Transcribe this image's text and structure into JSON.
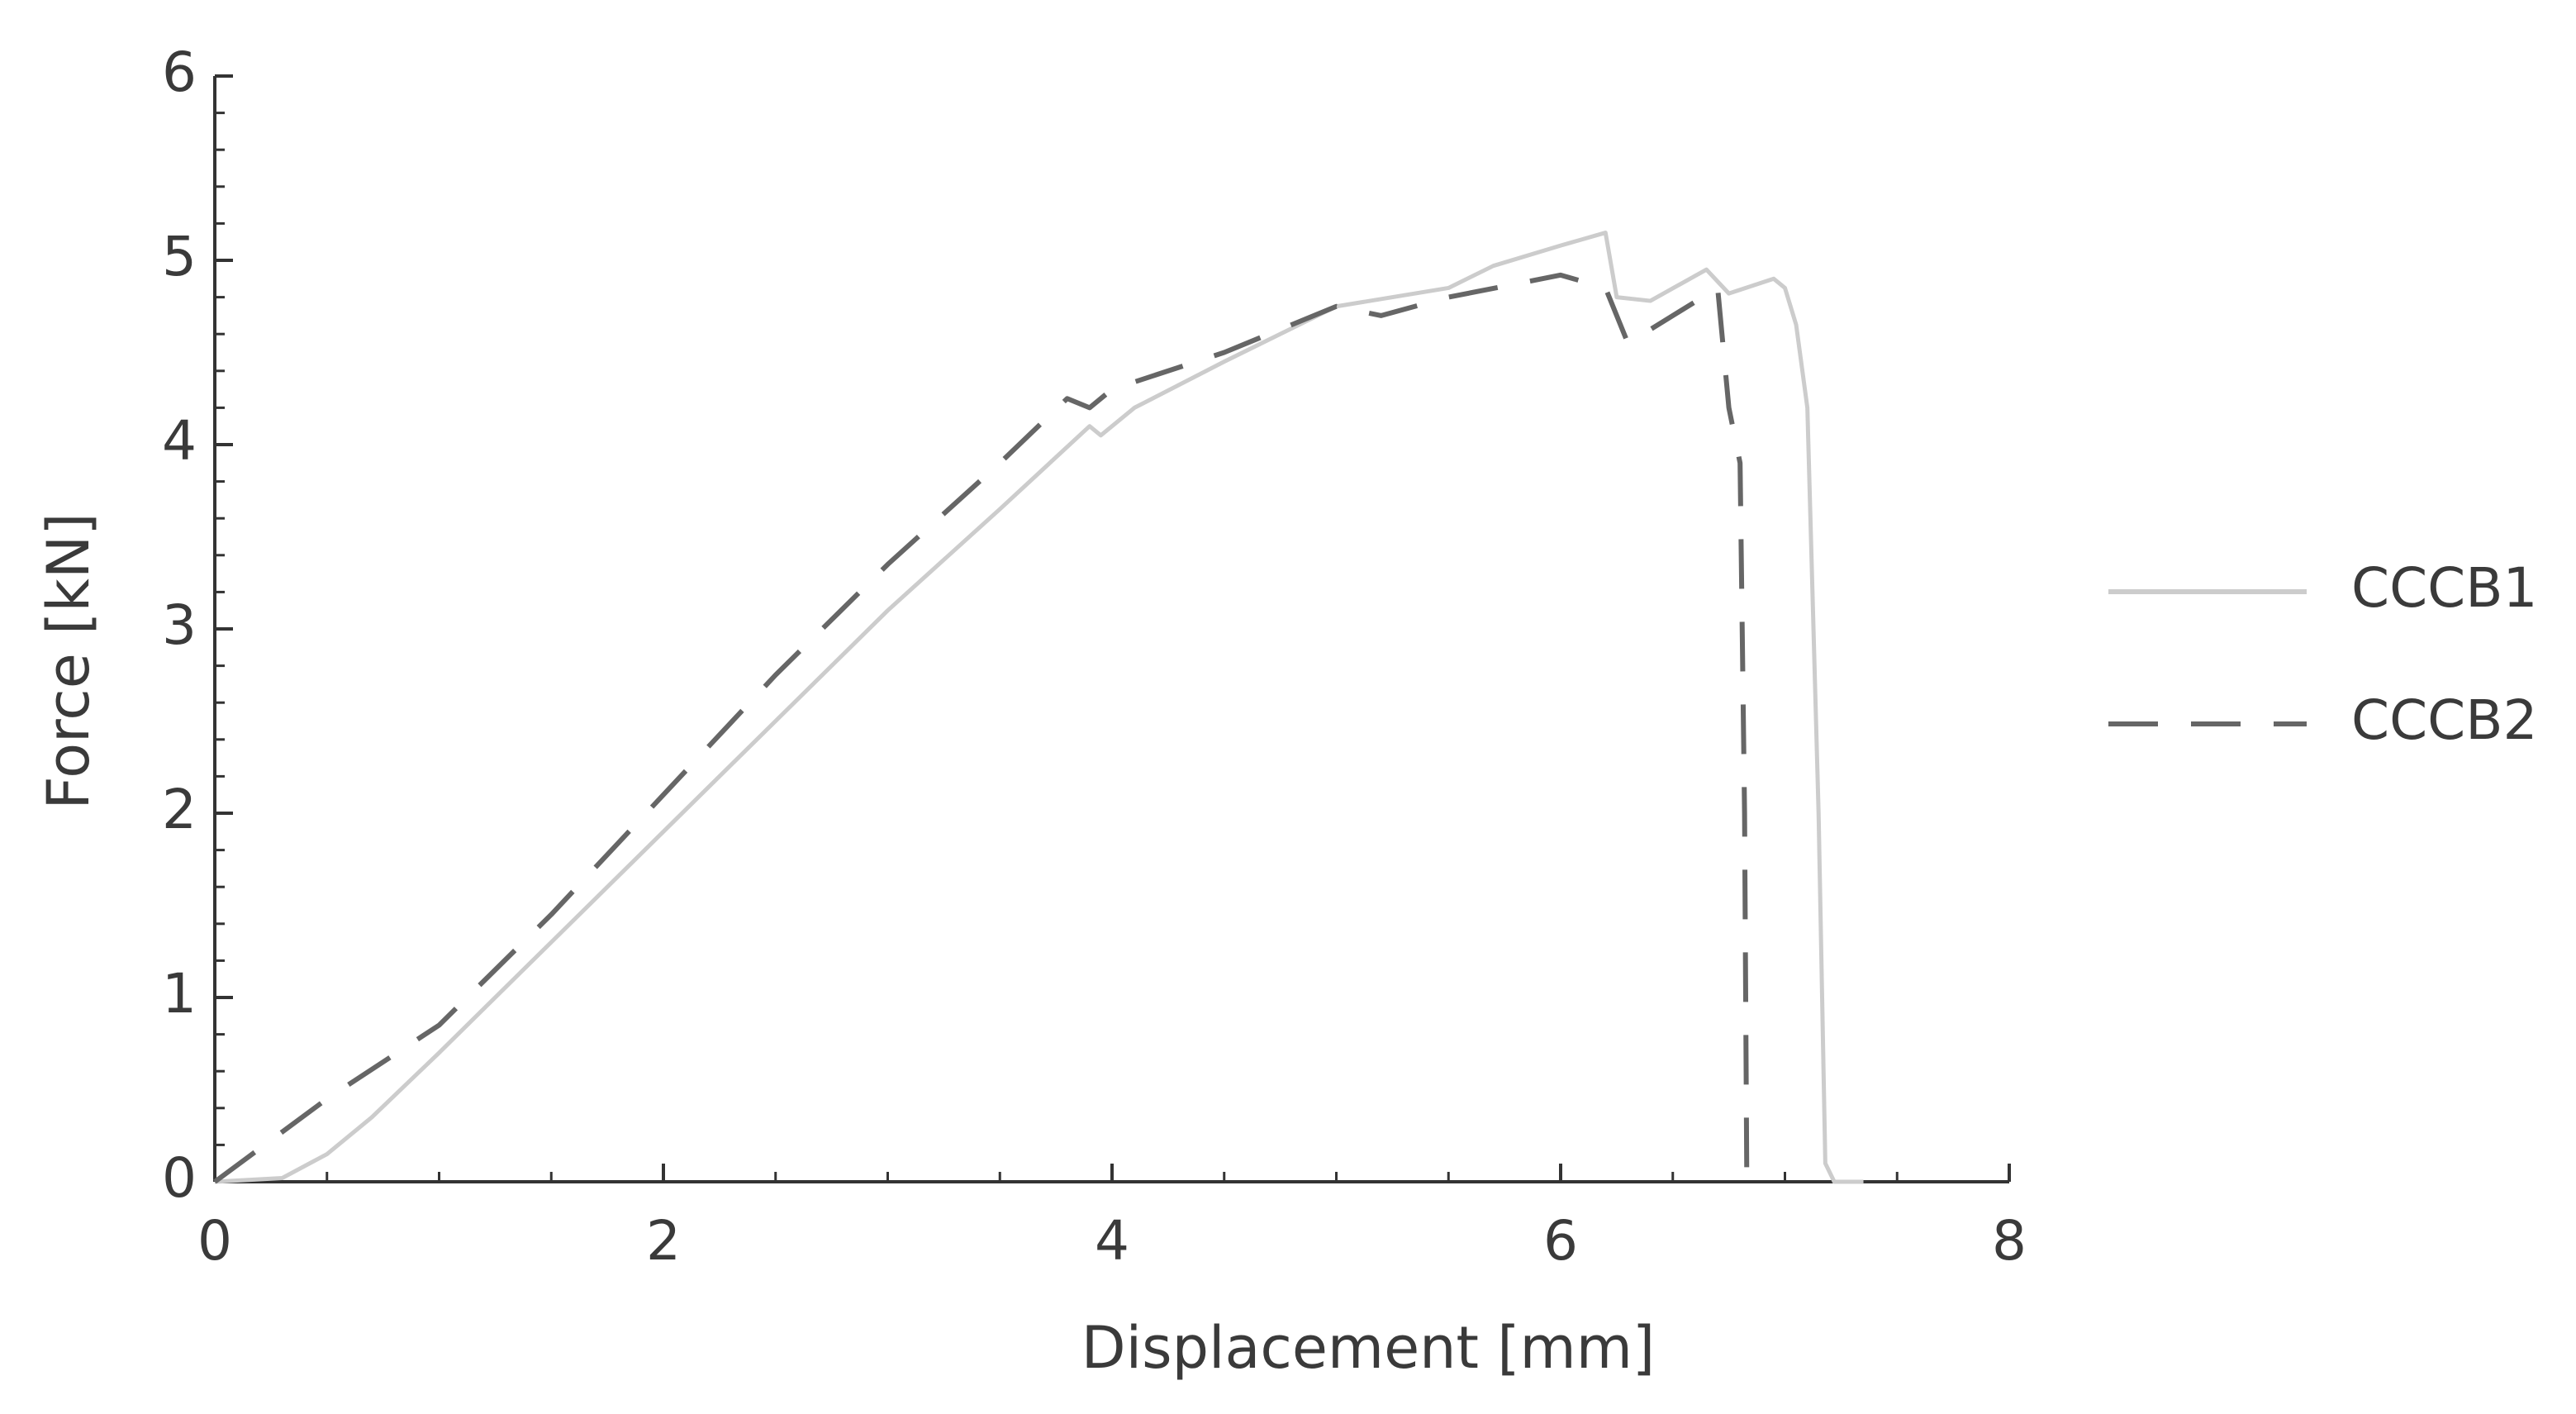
{
  "chart_data": {
    "type": "line",
    "xlabel": "Displacement [mm]",
    "ylabel": "Force [kN]",
    "xlim": [
      0,
      8
    ],
    "xticks": [
      0,
      2,
      4,
      6,
      8
    ],
    "xminorticks": [
      0.5,
      1,
      1.5,
      2.5,
      3,
      3.5,
      4.5,
      5,
      5.5,
      6.5,
      7,
      7.5
    ],
    "ylim": [
      0,
      6
    ],
    "yticks": [
      0,
      1,
      2,
      3,
      4,
      5,
      6
    ],
    "yminorticks": [
      0.2,
      0.4,
      0.6,
      0.8,
      1.2,
      1.4,
      1.6,
      1.8,
      2.2,
      2.4,
      2.6,
      2.8,
      3.2,
      3.4,
      3.6,
      3.8,
      4.2,
      4.4,
      4.6,
      4.8,
      5.2,
      5.4,
      5.6,
      5.8
    ],
    "grid": false,
    "legend": "right",
    "series": [
      {
        "name": "CCCB1",
        "color": "#cccccc",
        "dash": "solid",
        "x": [
          0,
          0.3,
          0.5,
          0.7,
          1,
          1.5,
          2,
          2.5,
          3,
          3.5,
          3.9,
          3.95,
          4.1,
          4.5,
          5,
          5.5,
          5.7,
          6.0,
          6.2,
          6.25,
          6.4,
          6.65,
          6.75,
          6.95,
          7.0,
          7.05,
          7.1,
          7.15,
          7.18,
          7.22,
          7.35
        ],
        "values": [
          0,
          0.02,
          0.15,
          0.35,
          0.7,
          1.3,
          1.9,
          2.5,
          3.1,
          3.65,
          4.1,
          4.05,
          4.2,
          4.45,
          4.75,
          4.85,
          4.97,
          5.08,
          5.15,
          4.8,
          4.78,
          4.95,
          4.82,
          4.9,
          4.85,
          4.65,
          4.2,
          2,
          0.1,
          0,
          0
        ]
      },
      {
        "name": "CCCB2",
        "color": "#666666",
        "dash": "dashed",
        "x": [
          0,
          0.5,
          1,
          1.5,
          2,
          2.5,
          3,
          3.5,
          3.8,
          3.9,
          4,
          4.5,
          5,
          5.2,
          5.5,
          6,
          6.2,
          6.3,
          6.7,
          6.75,
          6.8,
          6.82,
          6.83
        ],
        "values": [
          0,
          0.45,
          0.85,
          1.45,
          2.1,
          2.75,
          3.35,
          3.9,
          4.25,
          4.2,
          4.3,
          4.5,
          4.75,
          4.7,
          4.8,
          4.92,
          4.85,
          4.55,
          4.85,
          4.2,
          3.9,
          2,
          0
        ]
      }
    ]
  }
}
